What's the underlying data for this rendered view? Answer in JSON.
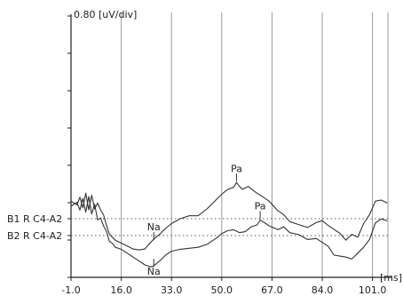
{
  "chart_data": {
    "type": "line",
    "title": "",
    "ylabel": "0.80 [uV/div]",
    "xlabel": "[ms]",
    "x_ticks": [
      "-1.0",
      "16.0",
      "33.0",
      "50.0",
      "67.0",
      "84.0",
      "101.0"
    ],
    "x_tick_values": [
      -1,
      16,
      33,
      50,
      67,
      84,
      101
    ],
    "xlim": [
      -1,
      114
    ],
    "grid": true,
    "baselines": [
      {
        "name": "B1 R C4-A2",
        "value": 0
      },
      {
        "name": "B2 R C4-A2",
        "value": 0
      }
    ],
    "series": [
      {
        "name": "B1 R C4-A2",
        "x": [
          -1,
          1,
          2,
          3,
          4,
          5,
          6,
          7,
          8,
          9,
          10,
          11,
          12,
          13,
          14,
          16,
          18,
          20,
          22,
          24,
          26,
          27,
          29,
          31,
          33,
          36,
          39,
          42,
          45,
          48,
          50,
          52,
          54,
          55,
          56,
          57,
          59,
          61,
          63,
          66,
          69,
          71,
          73,
          76,
          79,
          82,
          84,
          86,
          88,
          90,
          92,
          94,
          96,
          98,
          100,
          102,
          104,
          106
        ],
        "values": [
          1.8,
          1.4,
          2.2,
          1.1,
          2.6,
          0.9,
          2.4,
          1.0,
          1.6,
          0.9,
          0.4,
          -0.7,
          -1.6,
          -1.9,
          -2.2,
          -2.5,
          -2.8,
          -3.1,
          -3.2,
          -3.1,
          -2.4,
          -2.1,
          -1.6,
          -1.0,
          -0.5,
          0.0,
          0.3,
          0.3,
          1.0,
          1.9,
          2.5,
          3.0,
          3.2,
          3.7,
          3.3,
          3.0,
          3.3,
          2.8,
          2.4,
          1.8,
          0.8,
          0.4,
          -0.3,
          -0.6,
          -0.9,
          -0.4,
          -0.2,
          -0.7,
          -1.1,
          -1.5,
          -2.2,
          -1.6,
          -1.9,
          -0.5,
          0.4,
          1.8,
          1.9,
          1.6
        ]
      },
      {
        "name": "B2 R C4-A2",
        "x": [
          -1,
          1,
          2,
          3,
          4,
          5,
          6,
          7,
          8,
          9,
          10,
          11,
          12,
          13,
          14,
          16,
          18,
          20,
          22,
          24,
          26,
          27,
          29,
          31,
          33,
          36,
          39,
          42,
          45,
          48,
          50,
          52,
          54,
          56,
          58,
          60,
          62,
          63,
          64,
          66,
          69,
          71,
          73,
          76,
          79,
          82,
          84,
          86,
          88,
          90,
          92,
          94,
          96,
          98,
          100,
          102,
          104,
          106
        ],
        "values": [
          3.0,
          3.4,
          2.6,
          3.8,
          2.4,
          4.0,
          2.2,
          3.2,
          1.6,
          1.8,
          1.0,
          0.4,
          -0.6,
          -0.8,
          -1.2,
          -1.4,
          -1.8,
          -2.2,
          -2.6,
          -3.0,
          -3.2,
          -3.1,
          -2.6,
          -2.0,
          -1.6,
          -1.4,
          -1.3,
          -1.2,
          -0.9,
          -0.3,
          0.2,
          0.5,
          0.6,
          0.3,
          0.4,
          0.9,
          1.1,
          1.6,
          1.4,
          1.0,
          0.6,
          0.9,
          0.3,
          0.1,
          -0.4,
          -0.3,
          -0.7,
          -1.1,
          -2.0,
          -2.1,
          -2.2,
          -2.4,
          -1.8,
          -1.2,
          -0.4,
          1.3,
          1.7,
          1.5
        ]
      }
    ],
    "annotations": [
      {
        "text": "Pa",
        "series": 0,
        "x": 55
      },
      {
        "text": "Pa",
        "series": 1,
        "x": 63
      },
      {
        "text": "Na",
        "series": 0,
        "x": 27
      },
      {
        "text": "Na",
        "series": 1,
        "x": 27
      }
    ]
  }
}
